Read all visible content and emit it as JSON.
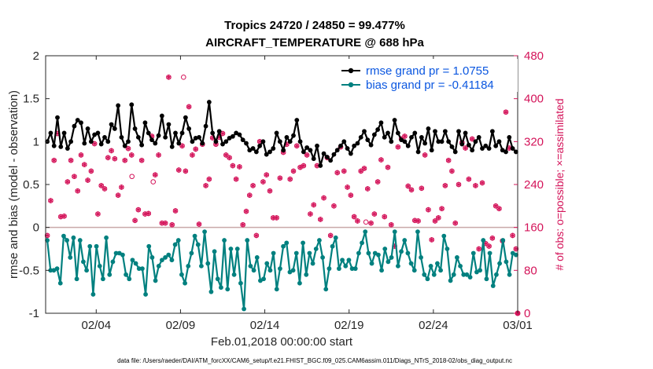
{
  "chart_data": {
    "type": "line",
    "title": "Tropics 24720 / 24850 = 99.477%",
    "subtitle": "AIRCRAFT_TEMPERATURE @ 688 hPa",
    "xlabel": "Feb.01,2018 00:00:00 start",
    "ylabel": "rmse and bias (model - observation)",
    "y2label": "# of obs: o=possible; ×=assimilated",
    "x_start": 1.0,
    "x_end": 29.0,
    "ylim": [
      -1,
      2
    ],
    "y2lim": [
      0,
      480
    ],
    "x_ticks": [
      {
        "pos": 4,
        "label": "02/04"
      },
      {
        "pos": 9,
        "label": "02/09"
      },
      {
        "pos": 14,
        "label": "02/14"
      },
      {
        "pos": 19,
        "label": "02/19"
      },
      {
        "pos": 24,
        "label": "02/24"
      },
      {
        "pos": 29,
        "label": "03/01"
      }
    ],
    "y_ticks": [
      "-1",
      "-0.5",
      "0",
      "0.5",
      "1",
      "1.5",
      "2"
    ],
    "y_tick_values": [
      -1,
      -0.5,
      0,
      0.5,
      1,
      1.5,
      2
    ],
    "y2_ticks": [
      "0",
      "80",
      "160",
      "240",
      "320",
      "400",
      "480"
    ],
    "y2_tick_values": [
      0,
      80,
      160,
      240,
      320,
      400,
      480
    ],
    "zero_line": 0,
    "legend": {
      "position": "top-right"
    },
    "series": [
      {
        "name": "rmse grand pr = 1.0755",
        "color": "#000000",
        "values": [
          1.0,
          1.1,
          0.95,
          1.28,
          0.94,
          1.1,
          0.92,
          1.0,
          1.18,
          1.25,
          1.22,
          0.98,
          1.15,
          1.0,
          1.08,
          1.1,
          0.97,
          1.05,
          1.0,
          1.2,
          1.15,
          1.42,
          1.05,
          0.95,
          1.0,
          1.43,
          1.15,
          1.05,
          0.96,
          1.22,
          1.1,
          1.02,
          0.98,
          1.07,
          1.3,
          1.05,
          1.2,
          0.94,
          1.1,
          0.98,
          1.1,
          1.28,
          1.15,
          1.0,
          1.04,
          1.05,
          0.98,
          1.18,
          1.46,
          1.1,
          1.0,
          1.12,
          0.97,
          1.0,
          1.04,
          1.06,
          1.1,
          1.08,
          1.02,
          0.98,
          0.9,
          0.92,
          0.88,
          0.95,
          1.0,
          0.85,
          0.88,
          0.92,
          1.1,
          1.0,
          0.9,
          1.05,
          1.0,
          1.07,
          1.25,
          1.0,
          0.88,
          0.93,
          0.9,
          0.8,
          0.95,
          0.72,
          0.86,
          0.82,
          0.78,
          0.85,
          0.9,
          0.95,
          1.0,
          0.92,
          0.86,
          0.95,
          0.98,
          1.05,
          1.12,
          1.02,
          0.96,
          1.08,
          1.14,
          1.22,
          1.05,
          1.1,
          1.0,
          1.25,
          1.1,
          1.02,
          1.0,
          0.95,
          1.05,
          1.1,
          0.88,
          1.05,
          0.98,
          1.15,
          0.9,
          1.12,
          1.0,
          1.0,
          1.12,
          1.0,
          0.94,
          0.88,
          1.12,
          0.97,
          1.1,
          0.96,
          0.9,
          1.0,
          1.05,
          0.92,
          0.95,
          0.92,
          1.12,
          0.95,
          1.0,
          0.9,
          0.88,
          1.05,
          0.92,
          0.88
        ]
      },
      {
        "name": "bias grand pr = -0.41184",
        "color": "#00807f",
        "values": [
          -0.15,
          -0.5,
          -0.5,
          -0.48,
          -0.65,
          -0.1,
          -0.15,
          -0.35,
          -0.12,
          -0.6,
          -0.15,
          -0.4,
          -0.5,
          -0.22,
          -0.78,
          -0.22,
          -0.45,
          -0.6,
          -0.12,
          -0.55,
          -0.4,
          -0.3,
          -0.3,
          -0.32,
          -0.55,
          -0.6,
          -0.38,
          -0.42,
          -0.48,
          -0.48,
          -0.78,
          -0.22,
          -0.35,
          -0.62,
          -0.45,
          -0.38,
          -0.35,
          -0.32,
          -0.38,
          -0.2,
          -0.15,
          -0.55,
          -0.65,
          -0.45,
          -0.3,
          -0.1,
          -0.2,
          -0.45,
          -0.05,
          -0.42,
          -0.75,
          -0.28,
          -0.6,
          -0.7,
          -0.15,
          -0.72,
          -0.25,
          -0.55,
          -0.25,
          -0.65,
          -0.95,
          -0.15,
          -0.45,
          -0.5,
          -0.35,
          -0.62,
          -0.6,
          -0.42,
          -0.5,
          -0.3,
          -0.72,
          -0.48,
          -0.22,
          -0.18,
          -0.52,
          -0.5,
          -0.3,
          -0.65,
          -0.18,
          -0.55,
          -0.3,
          -0.42,
          -0.25,
          -0.15,
          -0.35,
          -0.72,
          -0.48,
          -0.22,
          -0.12,
          -0.48,
          -0.38,
          -0.45,
          -0.38,
          -0.48,
          -0.48,
          -0.3,
          -0.18,
          -0.05,
          -0.3,
          -0.42,
          -0.3,
          -0.32,
          -0.5,
          -0.25,
          -0.4,
          -0.35,
          -0.05,
          -0.45,
          -0.28,
          -0.15,
          -0.3,
          -0.42,
          -0.5,
          -0.05,
          -0.35,
          -0.55,
          -0.6,
          -0.45,
          -0.55,
          -0.42,
          -0.5,
          -0.1,
          -0.25,
          -0.62,
          -0.55,
          -0.35,
          -0.45,
          -0.55,
          -0.55,
          -0.58,
          -0.3,
          -0.52,
          -0.5,
          -0.15,
          -0.6,
          -0.3,
          -0.68,
          -0.55,
          -0.42,
          -0.15,
          -0.4,
          -0.55,
          -0.3,
          -0.32
        ]
      },
      {
        "name": "obs possible (o)",
        "color": "#d4145a",
        "axis": "right",
        "marker": "o",
        "values": [
          145,
          210,
          285,
          335,
          180,
          181,
          245,
          285,
          255,
          228,
          295,
          277,
          248,
          265,
          316,
          185,
          238,
          232,
          290,
          303,
          288,
          220,
          235,
          285,
          307,
          295,
          173,
          193,
          285,
          185,
          186,
          330,
          258,
          295,
          168,
          168,
          440,
          165,
          191,
          267,
          312,
          265,
          385,
          295,
          306,
          166,
          315,
          238,
          250,
          327,
          315,
          328,
          335,
          295,
          290,
          275,
          250,
          273,
          165,
          190,
          220,
          238,
          145,
          320,
          245,
          258,
          228,
          178,
          178,
          252,
          300,
          315,
          250,
          265,
          312,
          272,
          275,
          295,
          185,
          202,
          275,
          175,
          215,
          290,
          145,
          200,
          262,
          310,
          265,
          235,
          220,
          180,
          172,
          265,
          270,
          232,
          168,
          185,
          245,
          286,
          180,
          272,
          165,
          125,
          310,
          325,
          330,
          237,
          230,
          173,
          172,
          233,
          295,
          193,
          137,
          172,
          178,
          195,
          238,
          285,
          265,
          168,
          240,
          318,
          308,
          250,
          325,
          238,
          120,
          243,
          130,
          125,
          140,
          200,
          195,
          135,
          375,
          308,
          145,
          120
        ]
      },
      {
        "name": "obs assimilated (×)",
        "color": "#d4145a",
        "axis": "right",
        "marker": "*",
        "values": [
          145,
          210,
          285,
          335,
          180,
          181,
          245,
          285,
          255,
          228,
          295,
          277,
          248,
          265,
          316,
          185,
          238,
          232,
          290,
          303,
          288,
          220,
          235,
          285,
          307,
          295,
          173,
          193,
          285,
          185,
          186,
          330,
          258,
          295,
          168,
          168,
          440,
          165,
          191,
          267,
          312,
          265,
          385,
          295,
          306,
          166,
          315,
          238,
          250,
          327,
          315,
          328,
          335,
          295,
          290,
          275,
          250,
          273,
          165,
          190,
          220,
          238,
          145,
          320,
          245,
          258,
          228,
          178,
          178,
          252,
          300,
          315,
          250,
          265,
          312,
          272,
          275,
          295,
          185,
          202,
          275,
          175,
          215,
          290,
          145,
          200,
          262,
          310,
          265,
          235,
          220,
          180,
          172,
          265,
          270,
          232,
          168,
          185,
          245,
          286,
          180,
          272,
          165,
          125,
          310,
          325,
          330,
          237,
          230,
          173,
          172,
          233,
          295,
          193,
          137,
          172,
          178,
          195,
          238,
          285,
          265,
          168,
          240,
          318,
          308,
          250,
          325,
          238,
          120,
          243,
          130,
          125,
          140,
          200,
          195,
          135,
          375,
          308,
          145,
          120
        ]
      }
    ],
    "possible_only_overrides": [
      {
        "x": 6.12,
        "y2": 255
      },
      {
        "x": 7.38,
        "y2": 245
      },
      {
        "x": 9.18,
        "y2": 440
      },
      {
        "x": 20.0,
        "y2": 170
      }
    ]
  },
  "footnote": "data file: /Users/raeder/DAI/ATM_forcXX/CAM6_setup/f.e21.FHIST_BGC.f09_025.CAM6assim.011/Diags_NTrS_2018-02/obs_diag_output.nc"
}
